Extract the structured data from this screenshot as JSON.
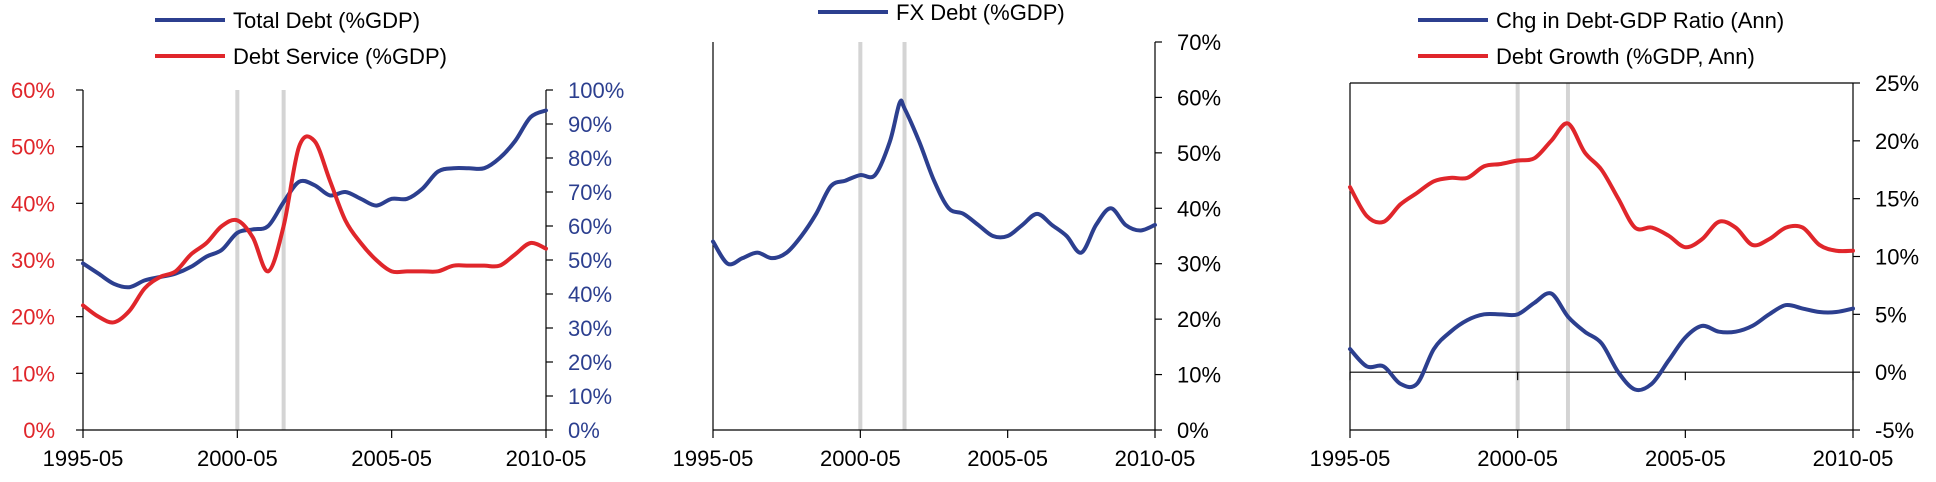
{
  "colors": {
    "blue": "#2c3f8f",
    "red": "#e0262b",
    "band": "#d4d4d4"
  },
  "chart_data": [
    {
      "type": "line",
      "title": "",
      "shaded_dates": [
        "2000-05",
        "2001-11"
      ],
      "x_ticks": [
        "1995-05",
        "2000-05",
        "2005-05",
        "2010-05"
      ],
      "y_left": {
        "lim": [
          0,
          60
        ],
        "ticks": [
          "0%",
          "10%",
          "20%",
          "30%",
          "40%",
          "50%",
          "60%"
        ],
        "color": "#e0262b"
      },
      "y_right": {
        "lim": [
          0,
          100
        ],
        "ticks": [
          "0%",
          "10%",
          "20%",
          "30%",
          "40%",
          "50%",
          "60%",
          "70%",
          "80%",
          "90%",
          "100%"
        ],
        "color": "#2c3f8f"
      },
      "legend": [
        "Total Debt (%GDP)",
        "Debt Service (%GDP)"
      ],
      "series": [
        {
          "name": "Total Debt (%GDP)",
          "axis": "right",
          "color": "#2c3f8f",
          "x": [
            "1995-05",
            "1995-11",
            "1996-05",
            "1996-11",
            "1997-05",
            "1997-11",
            "1998-05",
            "1998-11",
            "1999-05",
            "1999-11",
            "2000-05",
            "2000-11",
            "2001-05",
            "2001-11",
            "2002-05",
            "2002-11",
            "2003-05",
            "2003-11",
            "2004-05",
            "2004-11",
            "2005-05",
            "2005-11",
            "2006-05",
            "2006-11",
            "2007-05",
            "2007-11",
            "2008-05",
            "2008-11",
            "2009-05",
            "2009-11",
            "2010-05"
          ],
          "y": [
            49,
            46,
            43,
            42,
            44,
            45,
            46,
            48,
            51,
            53,
            58,
            59,
            60,
            67,
            73,
            72,
            69,
            70,
            68,
            66,
            68,
            68,
            71,
            76,
            77,
            77,
            77,
            80,
            85,
            92,
            94
          ]
        },
        {
          "name": "Debt Service (%GDP)",
          "axis": "left",
          "color": "#e0262b",
          "x": [
            "1995-05",
            "1995-11",
            "1996-05",
            "1996-11",
            "1997-05",
            "1997-11",
            "1998-05",
            "1998-11",
            "1999-05",
            "1999-11",
            "2000-05",
            "2000-11",
            "2001-05",
            "2001-11",
            "2002-05",
            "2002-11",
            "2003-05",
            "2003-11",
            "2004-05",
            "2004-11",
            "2005-05",
            "2005-11",
            "2006-05",
            "2006-11",
            "2007-05",
            "2007-11",
            "2008-05",
            "2008-11",
            "2009-05",
            "2009-11",
            "2010-05"
          ],
          "y": [
            22,
            20,
            19,
            21,
            25,
            27,
            28,
            31,
            33,
            36,
            37,
            34,
            28,
            36,
            50,
            51,
            44,
            37,
            33,
            30,
            28,
            28,
            28,
            28,
            29,
            29,
            29,
            29,
            31,
            33,
            32
          ]
        }
      ]
    },
    {
      "type": "line",
      "title": "",
      "shaded_dates": [
        "2000-05",
        "2001-11"
      ],
      "x_ticks": [
        "1995-05",
        "2000-05",
        "2005-05",
        "2010-05"
      ],
      "y_right": {
        "lim": [
          0,
          70
        ],
        "ticks": [
          "0%",
          "10%",
          "20%",
          "30%",
          "40%",
          "50%",
          "60%",
          "70%"
        ],
        "color": "#000000"
      },
      "legend": [
        "FX Debt (%GDP)"
      ],
      "series": [
        {
          "name": "FX Debt (%GDP)",
          "axis": "right",
          "color": "#2c3f8f",
          "x": [
            "1995-05",
            "1995-11",
            "1996-05",
            "1996-11",
            "1997-05",
            "1997-11",
            "1998-05",
            "1998-11",
            "1999-05",
            "1999-11",
            "2000-05",
            "2000-11",
            "2001-05",
            "2001-09",
            "2001-11",
            "2002-05",
            "2002-11",
            "2003-05",
            "2003-11",
            "2004-05",
            "2004-11",
            "2005-05",
            "2005-11",
            "2006-05",
            "2006-11",
            "2007-05",
            "2007-11",
            "2008-05",
            "2008-11",
            "2009-05",
            "2009-11",
            "2010-05"
          ],
          "y": [
            34,
            30,
            31,
            32,
            31,
            32,
            35,
            39,
            44,
            45,
            46,
            46,
            52,
            59,
            58,
            52,
            45,
            40,
            39,
            37,
            35,
            35,
            37,
            39,
            37,
            35,
            32,
            37,
            40,
            37,
            36,
            37
          ]
        }
      ]
    },
    {
      "type": "line",
      "title": "",
      "shaded_dates": [
        "2000-05",
        "2001-11"
      ],
      "x_ticks": [
        "1995-05",
        "2000-05",
        "2005-05",
        "2010-05"
      ],
      "y_right": {
        "lim": [
          -5,
          25
        ],
        "ticks": [
          "-5%",
          "0%",
          "5%",
          "10%",
          "15%",
          "20%",
          "25%"
        ],
        "color": "#000000"
      },
      "legend": [
        "Chg in Debt-GDP Ratio (Ann)",
        "Debt Growth (%GDP, Ann)"
      ],
      "series": [
        {
          "name": "Chg in Debt-GDP Ratio (Ann)",
          "axis": "right",
          "color": "#2c3f8f",
          "x": [
            "1995-05",
            "1995-11",
            "1996-05",
            "1996-11",
            "1997-05",
            "1997-11",
            "1998-05",
            "1998-11",
            "1999-05",
            "1999-11",
            "2000-05",
            "2000-11",
            "2001-05",
            "2001-11",
            "2002-05",
            "2002-11",
            "2003-05",
            "2003-11",
            "2004-05",
            "2004-11",
            "2005-05",
            "2005-11",
            "2006-05",
            "2006-11",
            "2007-05",
            "2007-11",
            "2008-05",
            "2008-11",
            "2009-05",
            "2009-11",
            "2010-05"
          ],
          "y": [
            2,
            0.5,
            0.5,
            -1,
            -1,
            2,
            3.5,
            4.5,
            5,
            5,
            5,
            6,
            6.8,
            4.8,
            3.5,
            2.5,
            0,
            -1.5,
            -1,
            1,
            3,
            4,
            3.5,
            3.5,
            4,
            5,
            5.8,
            5.5,
            5.2,
            5.2,
            5.5
          ]
        },
        {
          "name": "Debt Growth (%GDP, Ann)",
          "axis": "right",
          "color": "#e0262b",
          "x": [
            "1995-05",
            "1995-11",
            "1996-05",
            "1996-11",
            "1997-05",
            "1997-11",
            "1998-05",
            "1998-11",
            "1999-05",
            "1999-11",
            "2000-05",
            "2000-11",
            "2001-05",
            "2001-11",
            "2002-05",
            "2002-11",
            "2003-05",
            "2003-11",
            "2004-05",
            "2004-11",
            "2005-05",
            "2005-11",
            "2006-05",
            "2006-11",
            "2007-05",
            "2007-11",
            "2008-05",
            "2008-11",
            "2009-05",
            "2009-11",
            "2010-05"
          ],
          "y": [
            16,
            13.5,
            13,
            14.5,
            15.5,
            16.5,
            16.8,
            16.8,
            17.8,
            18,
            18.3,
            18.5,
            20,
            21.5,
            19,
            17.5,
            15,
            12.5,
            12.5,
            11.8,
            10.8,
            11.5,
            13,
            12.5,
            11,
            11.5,
            12.5,
            12.5,
            11,
            10.5,
            10.5
          ]
        }
      ]
    }
  ]
}
